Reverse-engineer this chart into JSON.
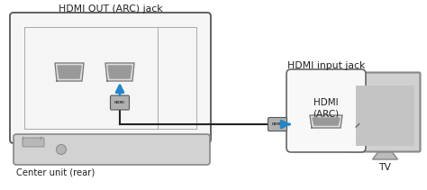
{
  "bg_color": "#ffffff",
  "label_hdmi_out": "HDMI OUT (ARC) jack",
  "label_hdmi_in": "HDMI input jack",
  "label_center": "Center unit (rear)",
  "label_tv": "TV",
  "label_hdmi_arc": "HDMI\n(ARC)",
  "text_color": "#222222",
  "arrow_color": "#2585c8",
  "cable_color": "#222222",
  "back_panel_fill": "#f5f5f5",
  "back_panel_stroke": "#555555",
  "inner_panel_stroke": "#aaaaaa",
  "hdmi_port_fill": "#dddddd",
  "hdmi_port_inner": "#999999",
  "hdmi_port_stroke": "#777777",
  "connector_fill": "#b0b0b0",
  "connector_stroke": "#555555",
  "unit_fill": "#d2d2d2",
  "unit_stroke": "#888888",
  "jack_box_fill": "#f8f8f8",
  "jack_box_stroke": "#666666",
  "tv_frame_fill": "#d0d0d0",
  "tv_frame_stroke": "#888888",
  "tv_screen_fill": "#c4c4c4",
  "tv_stand_fill": "#bbbbbb",
  "callout_stroke": "#555555"
}
